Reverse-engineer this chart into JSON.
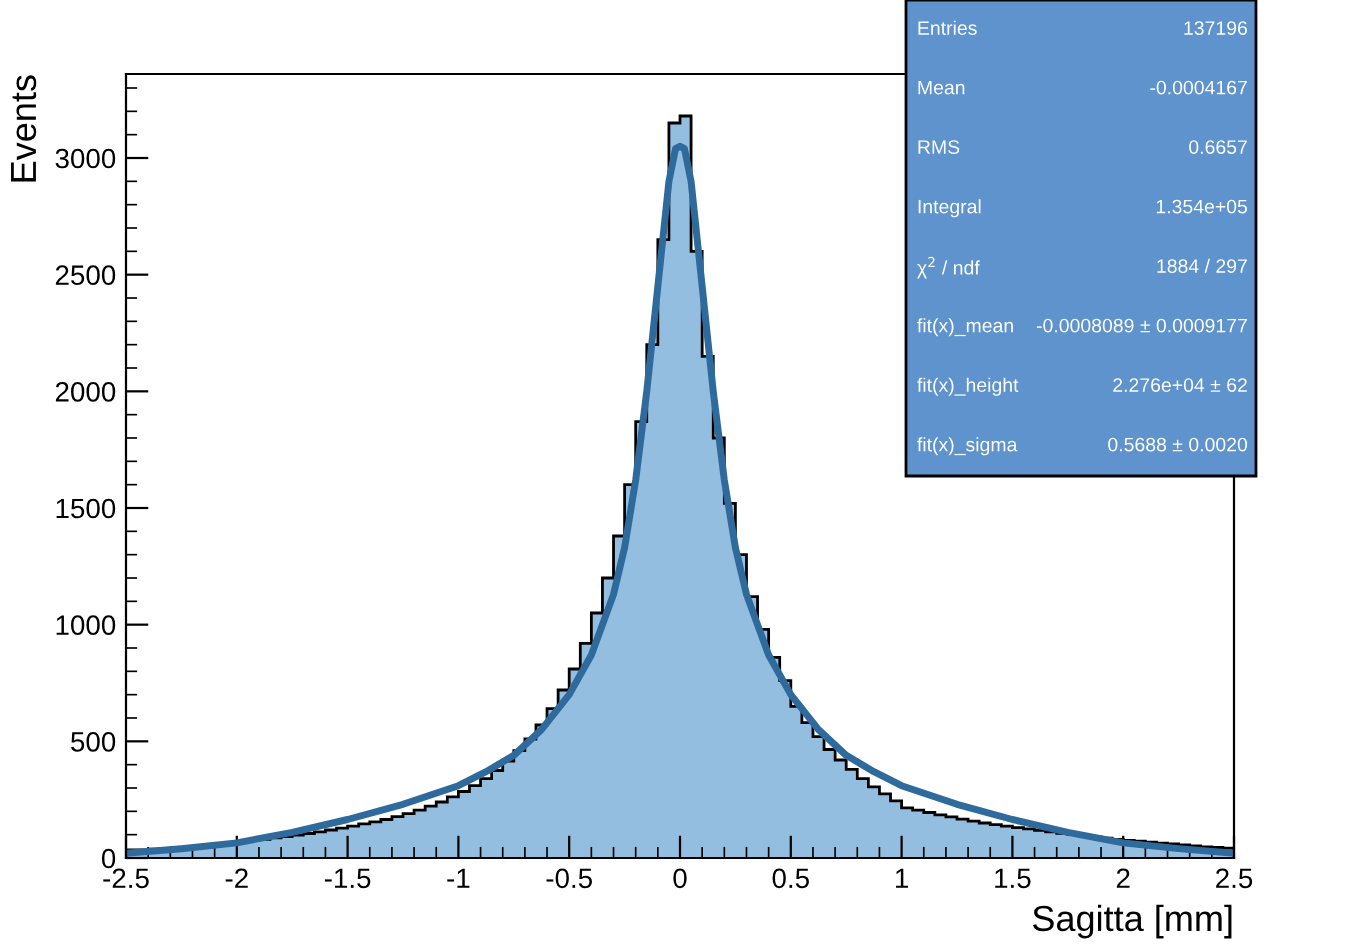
{
  "chart_data": {
    "type": "histogram",
    "xlabel": "Sagitta [mm]",
    "ylabel": "Events",
    "bins": [
      -2.5,
      -2.45,
      -2.4,
      -2.35,
      -2.3,
      -2.25,
      -2.2,
      -2.15,
      -2.1,
      -2.05,
      -2.0,
      -1.95,
      -1.9,
      -1.85,
      -1.8,
      -1.75,
      -1.7,
      -1.65,
      -1.6,
      -1.55,
      -1.5,
      -1.45,
      -1.4,
      -1.35,
      -1.3,
      -1.25,
      -1.2,
      -1.15,
      -1.1,
      -1.05,
      -1.0,
      -0.95,
      -0.9,
      -0.85,
      -0.8,
      -0.75,
      -0.7,
      -0.65,
      -0.6,
      -0.55,
      -0.5,
      -0.45,
      -0.4,
      -0.35,
      -0.3,
      -0.25,
      -0.2,
      -0.15,
      -0.1,
      -0.05,
      0.0,
      0.05,
      0.1,
      0.15,
      0.2,
      0.25,
      0.3,
      0.35,
      0.4,
      0.45,
      0.5,
      0.55,
      0.6,
      0.65,
      0.7,
      0.75,
      0.8,
      0.85,
      0.9,
      0.95,
      1.0,
      1.05,
      1.1,
      1.15,
      1.2,
      1.25,
      1.3,
      1.35,
      1.4,
      1.45,
      1.5,
      1.55,
      1.6,
      1.65,
      1.7,
      1.75,
      1.8,
      1.85,
      1.9,
      1.95,
      2.0,
      2.05,
      2.1,
      2.15,
      2.2,
      2.25,
      2.3,
      2.35,
      2.4,
      2.45,
      2.5
    ],
    "series": [
      {
        "type": "histogram",
        "color": "#94bedf",
        "values": [
          35,
          36,
          38,
          40,
          42,
          45,
          48,
          52,
          56,
          62,
          68,
          74,
          80,
          86,
          92,
          98,
          105,
          112,
          120,
          128,
          137,
          146,
          155,
          165,
          177,
          190,
          205,
          222,
          240,
          262,
          285,
          310,
          340,
          375,
          415,
          460,
          510,
          570,
          640,
          720,
          810,
          920,
          1050,
          1200,
          1380,
          1600,
          1870,
          2200,
          2650,
          3150,
          3180,
          2600,
          2150,
          1800,
          1520,
          1300,
          1120,
          980,
          860,
          760,
          650,
          580,
          520,
          465,
          420,
          380,
          340,
          305,
          275,
          245,
          215,
          205,
          195,
          185,
          176,
          167,
          158,
          150,
          143,
          137,
          130,
          125,
          118,
          112,
          106,
          100,
          95,
          90,
          85,
          80,
          76,
          72,
          68,
          64,
          60,
          56,
          52,
          48,
          45,
          42
        ]
      },
      {
        "type": "line",
        "color": "#2f6a9c",
        "x": [
          -2.5,
          -2.25,
          -2,
          -1.75,
          -1.5,
          -1.25,
          -1,
          -0.875,
          -0.75,
          -0.625,
          -0.5,
          -0.4,
          -0.3,
          -0.25,
          -0.2,
          -0.15,
          -0.1,
          -0.05,
          -0.02,
          0,
          0.02,
          0.05,
          0.1,
          0.15,
          0.2,
          0.25,
          0.3,
          0.4,
          0.5,
          0.625,
          0.75,
          0.875,
          1,
          1.25,
          1.5,
          1.75,
          2,
          2.25,
          2.5
        ],
        "values": [
          20,
          40,
          65,
          110,
          165,
          230,
          310,
          370,
          440,
          550,
          700,
          870,
          1130,
          1330,
          1620,
          2000,
          2450,
          2900,
          3040,
          3050,
          3040,
          2900,
          2450,
          2000,
          1620,
          1330,
          1130,
          870,
          700,
          550,
          440,
          370,
          310,
          230,
          165,
          110,
          65,
          40,
          20
        ]
      }
    ],
    "xlim": [
      -2.5,
      2.5
    ],
    "ylim": [
      0,
      3360
    ],
    "xticks": [
      -2.5,
      -2,
      -1.5,
      -1,
      -0.5,
      0,
      0.5,
      1,
      1.5,
      2,
      2.5
    ],
    "yticks": [
      0,
      500,
      1000,
      1500,
      2000,
      2500,
      3000
    ],
    "grid": false,
    "annotations": [
      "Entries",
      "137196",
      "Mean",
      "-0.0004167",
      "RMS",
      "0.6657",
      "Integral",
      "1.354e+05",
      "χ$^{2}$ / ndf",
      "1884 / 297",
      "fit(x)_mean",
      "-0.0008089 ± 0.0009177",
      "fit(x)_height",
      "2.276e+04 ± 62",
      "fit(x)_sigma",
      "0.5688 ± 0.0020"
    ]
  }
}
